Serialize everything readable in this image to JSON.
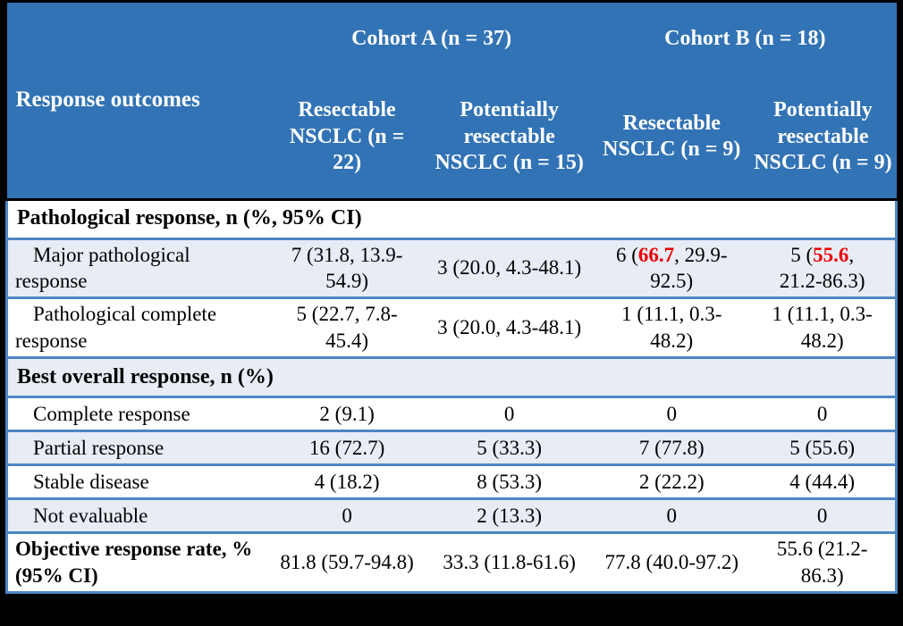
{
  "colors": {
    "header_blue": "#3273b5",
    "header_text": "#ffffff",
    "row_shade": "#e7ecf5",
    "border_blue": "#4e86c4",
    "highlight_red": "#ee0000",
    "frame_black": "#000000"
  },
  "table": {
    "corner_label": "Response outcomes",
    "cohorts": [
      {
        "label": "Cohort A (n = 37)"
      },
      {
        "label": "Cohort B (n = 18)"
      }
    ],
    "columns": [
      "Resectable NSCLC (n = 22)",
      "Potentially resectable NSCLC (n = 15)",
      "Resectable NSCLC (n = 9)",
      "Potentially resectable NSCLC (n = 9)"
    ],
    "rows": [
      {
        "type": "section",
        "label": "Pathological response, n (%, 95% CI)"
      },
      {
        "type": "data",
        "label": "Major pathological response",
        "cells": [
          {
            "text": "7 (31.8, 13.9-54.9)"
          },
          {
            "text": "3 (20.0, 4.3-48.1)"
          },
          {
            "pre": "6 (",
            "red": "66.7",
            "post": ", 29.9-92.5)"
          },
          {
            "pre": "5 (",
            "red": "55.6",
            "post": ", 21.2-86.3)"
          }
        ]
      },
      {
        "type": "data",
        "label": "Pathological complete response",
        "cells": [
          {
            "text": "5 (22.7, 7.8-45.4)"
          },
          {
            "text": "3 (20.0, 4.3-48.1)"
          },
          {
            "text": "1 (11.1, 0.3-48.2)"
          },
          {
            "text": "1 (11.1, 0.3-48.2)"
          }
        ]
      },
      {
        "type": "section",
        "label": "Best overall response, n (%)"
      },
      {
        "type": "data",
        "label": "Complete response",
        "cells": [
          {
            "text": "2 (9.1)"
          },
          {
            "text": "0"
          },
          {
            "text": "0"
          },
          {
            "text": "0"
          }
        ]
      },
      {
        "type": "data",
        "label": "Partial response",
        "cells": [
          {
            "text": "16 (72.7)"
          },
          {
            "text": "5 (33.3)"
          },
          {
            "text": "7 (77.8)"
          },
          {
            "text": "5 (55.6)"
          }
        ]
      },
      {
        "type": "data",
        "label": "Stable disease",
        "cells": [
          {
            "text": "4 (18.2)"
          },
          {
            "text": "8 (53.3)"
          },
          {
            "text": "2 (22.2)"
          },
          {
            "text": "4 (44.4)"
          }
        ]
      },
      {
        "type": "data",
        "label": "Not evaluable",
        "cells": [
          {
            "text": "0"
          },
          {
            "text": "2 (13.3)"
          },
          {
            "text": "0"
          },
          {
            "text": "0"
          }
        ]
      },
      {
        "type": "data",
        "label": "Objective response rate, % (95% CI)",
        "bold_label": true,
        "cells": [
          {
            "text": "81.8 (59.7-94.8)"
          },
          {
            "text": "33.3 (11.8-61.6)"
          },
          {
            "text": "77.8 (40.0-97.2)"
          },
          {
            "text": "55.6 (21.2-86.3)"
          }
        ]
      }
    ]
  }
}
